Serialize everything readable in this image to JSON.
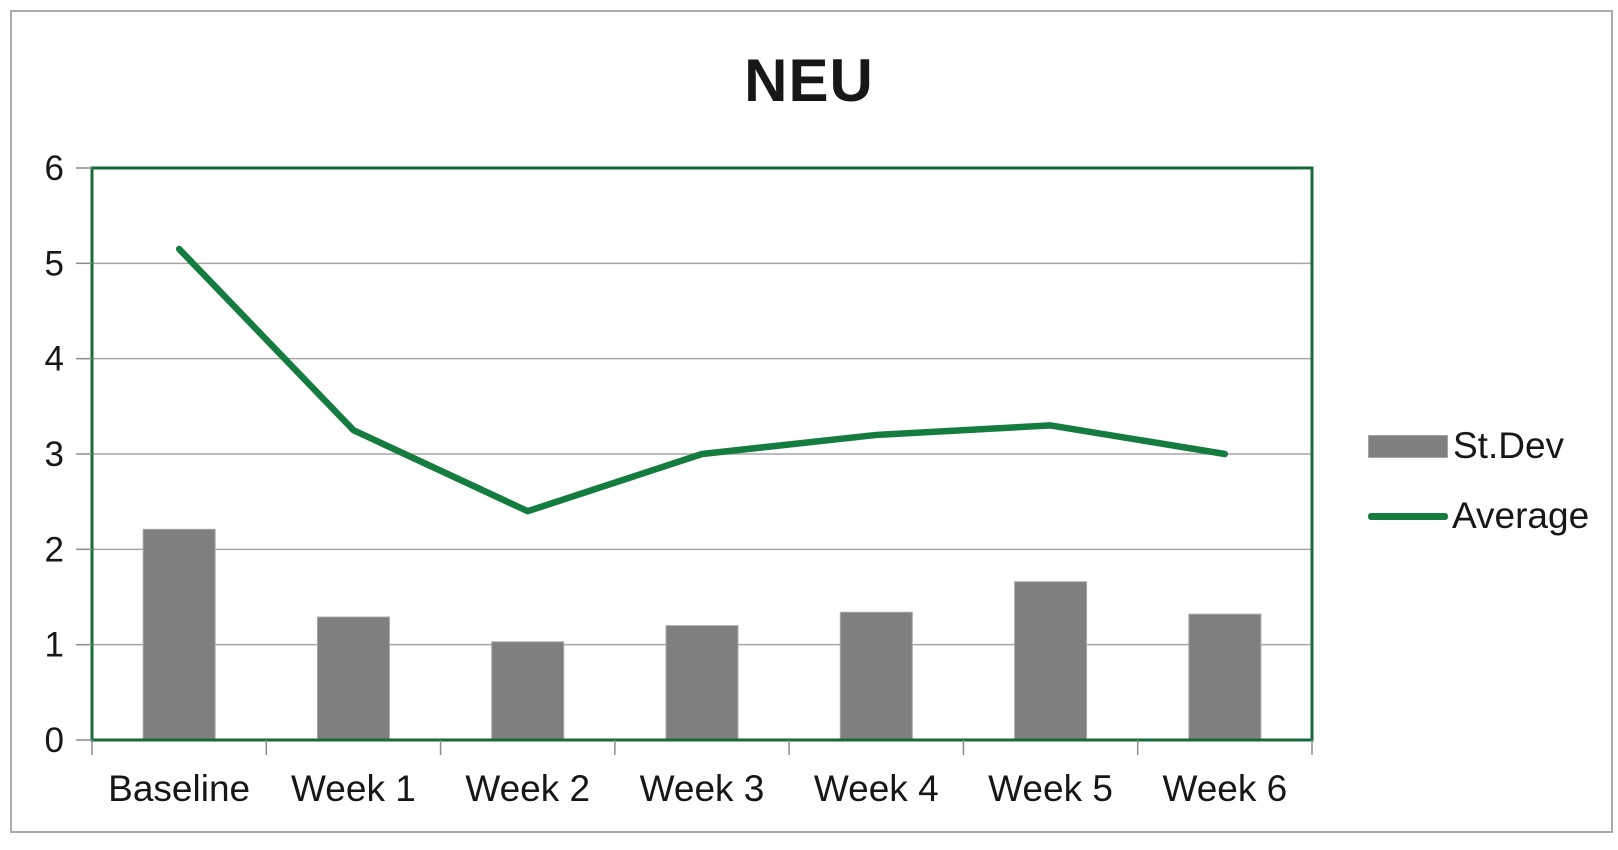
{
  "chart_data": {
    "type": "combo",
    "title": "NEU",
    "categories": [
      "Baseline",
      "Week 1",
      "Week 2",
      "Week 3",
      "Week 4",
      "Week 5",
      "Week 6"
    ],
    "series": [
      {
        "name": "St.Dev",
        "type": "bar",
        "color": "#7f7f7f",
        "values": [
          2.21,
          1.29,
          1.03,
          1.2,
          1.34,
          1.66,
          1.32
        ]
      },
      {
        "name": "Average",
        "type": "line",
        "color": "#147c3e",
        "values": [
          5.15,
          3.25,
          2.4,
          3.0,
          3.2,
          3.3,
          3.0
        ]
      }
    ],
    "xlabel": "",
    "ylabel": "",
    "ylim": [
      0,
      6
    ],
    "y_ticks": [
      "0",
      "1",
      "2",
      "3",
      "4",
      "5",
      "6"
    ],
    "grid": true,
    "legend_position": "right",
    "plot_border_color": "#176b3b",
    "gridline_color": "#a6a6a6",
    "axis_color": "#8c8c8c",
    "text_color": "#171717"
  }
}
